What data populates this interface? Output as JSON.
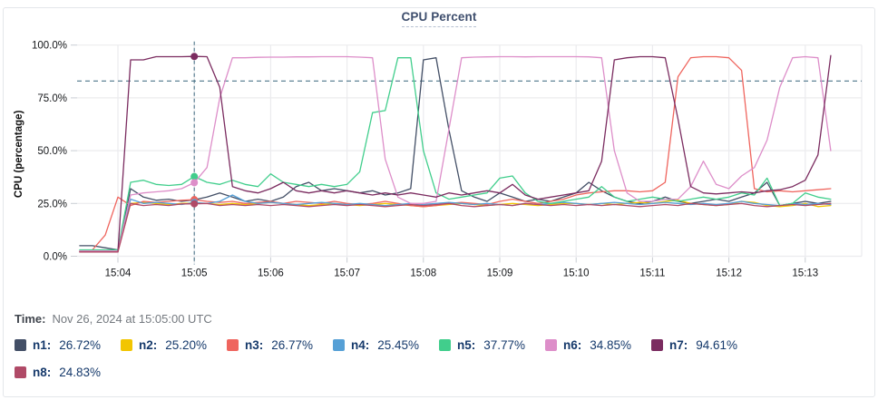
{
  "time_row": {
    "label": "Time:",
    "value": "Nov 26, 2024 at 15:05:00 UTC"
  },
  "chart_data": {
    "type": "line",
    "title": "CPU Percent",
    "ylabel": "CPU (percentage)",
    "ylim": [
      0,
      100
    ],
    "y_ticks": [
      "0.0%",
      "25.0%",
      "50.0%",
      "75.0%",
      "100.0%"
    ],
    "x_ticks": [
      "15:04",
      "15:05",
      "15:06",
      "15:07",
      "15:08",
      "15:09",
      "15:10",
      "15:11",
      "15:12",
      "15:13"
    ],
    "grid": true,
    "legend_position": "bottom",
    "threshold_percent": 83,
    "cursor_time": "15:05:00",
    "cursor_color": "#4d7589",
    "threshold_color": "#4d7589",
    "x": [
      "15:03:30",
      "15:03:40",
      "15:03:50",
      "15:04:00",
      "15:04:10",
      "15:04:20",
      "15:04:30",
      "15:04:40",
      "15:04:50",
      "15:05:00",
      "15:05:10",
      "15:05:20",
      "15:05:30",
      "15:05:40",
      "15:05:50",
      "15:06:00",
      "15:06:10",
      "15:06:20",
      "15:06:30",
      "15:06:40",
      "15:06:50",
      "15:07:00",
      "15:07:10",
      "15:07:20",
      "15:07:30",
      "15:07:40",
      "15:07:50",
      "15:08:00",
      "15:08:10",
      "15:08:20",
      "15:08:30",
      "15:08:40",
      "15:08:50",
      "15:09:00",
      "15:09:10",
      "15:09:20",
      "15:09:30",
      "15:09:40",
      "15:09:50",
      "15:10:00",
      "15:10:10",
      "15:10:20",
      "15:10:30",
      "15:10:40",
      "15:10:50",
      "15:11:00",
      "15:11:10",
      "15:11:20",
      "15:11:30",
      "15:11:40",
      "15:11:50",
      "15:12:00",
      "15:12:10",
      "15:12:20",
      "15:12:30",
      "15:12:40",
      "15:12:50",
      "15:13:00",
      "15:13:10",
      "15:13:20"
    ],
    "series": [
      {
        "name": "n1",
        "color": "#434f66",
        "cursor_value": 26.72,
        "cursor_label": "26.72%",
        "values": [
          5,
          5,
          4,
          3,
          32,
          28,
          26.5,
          27,
          26,
          26.72,
          28,
          30,
          28,
          26,
          27,
          26,
          28,
          33,
          35,
          31,
          32,
          31,
          30,
          31,
          29,
          30,
          32,
          93,
          94,
          60,
          31,
          28,
          26,
          30,
          28,
          26,
          27,
          26,
          28,
          30,
          35,
          31,
          28,
          26,
          25,
          26,
          28,
          26,
          25,
          26,
          27,
          26,
          28,
          30,
          35,
          24,
          25,
          26,
          25,
          26
        ]
      },
      {
        "name": "n2",
        "color": "#f2c501",
        "cursor_value": 25.2,
        "cursor_label": "25.20%",
        "values": [
          2,
          2,
          2,
          2.5,
          25,
          25.5,
          25,
          24.5,
          25,
          25.2,
          25,
          24.5,
          25,
          24.5,
          25,
          25.5,
          25,
          24.5,
          24,
          24.5,
          25,
          24.5,
          24,
          24.5,
          25,
          24.5,
          24,
          23.5,
          24,
          24.5,
          25,
          24.5,
          24,
          24.5,
          25,
          24.5,
          24,
          24.5,
          25,
          25,
          24.5,
          25,
          24.5,
          25,
          25.5,
          25,
          26,
          26.5,
          25,
          24.5,
          24,
          24.5,
          26,
          25.5,
          24,
          23.5,
          24,
          25,
          23.5,
          24
        ]
      },
      {
        "name": "n3",
        "color": "#ef655e",
        "cursor_value": 26.77,
        "cursor_label": "26.77%",
        "values": [
          2.5,
          3,
          10,
          28,
          24,
          26,
          25.5,
          26,
          26.5,
          26.77,
          26,
          25.5,
          26,
          25,
          25.5,
          26,
          25,
          26,
          25.5,
          25,
          26,
          25,
          24.5,
          25,
          26,
          25,
          24,
          23.5,
          24,
          25,
          25.5,
          25,
          24.5,
          26,
          27,
          26,
          25,
          26,
          27,
          29,
          30,
          30.5,
          31,
          31,
          30.5,
          31,
          35,
          85,
          94,
          94.5,
          94.5,
          94,
          88,
          32,
          30.5,
          31,
          30.5,
          31,
          31.5,
          32
        ]
      },
      {
        "name": "n4",
        "color": "#56a0d6",
        "cursor_value": 25.45,
        "cursor_label": "25.45%",
        "values": [
          2,
          2,
          2,
          3,
          27,
          25,
          25.5,
          25,
          24.5,
          25.45,
          25,
          26,
          29,
          26,
          25,
          25.5,
          25,
          24.5,
          25,
          25.5,
          25,
          24.5,
          25,
          24.5,
          24,
          24.5,
          25,
          24.5,
          25,
          25.5,
          25,
          24.5,
          25,
          24.5,
          24,
          25,
          24.5,
          25,
          25.5,
          25,
          24.5,
          25,
          25.5,
          25,
          24.5,
          25,
          25.5,
          25,
          24.5,
          25,
          24.5,
          25,
          26,
          25,
          24.5,
          24,
          25,
          24.5,
          25,
          24.5
        ]
      },
      {
        "name": "n5",
        "color": "#41ce8c",
        "cursor_value": 37.77,
        "cursor_label": "37.77%",
        "values": [
          3,
          3,
          3,
          3,
          35,
          36,
          34,
          33.5,
          34,
          37.77,
          35,
          34,
          36,
          34,
          33,
          39,
          35,
          34,
          33,
          34,
          33,
          34,
          40,
          68,
          69,
          94,
          94,
          50,
          30,
          27,
          28,
          29,
          30,
          37,
          38,
          30,
          26,
          25,
          26,
          27,
          28,
          33,
          28,
          26,
          27,
          28,
          27,
          26,
          27,
          28,
          27,
          28,
          30,
          29,
          37,
          24,
          25,
          30,
          28,
          27
        ]
      },
      {
        "name": "n6",
        "color": "#dd8ec9",
        "cursor_value": 34.85,
        "cursor_label": "34.85%",
        "values": [
          2.5,
          2.5,
          2.5,
          2.5,
          29,
          30,
          30.5,
          31,
          32,
          34.85,
          42,
          75,
          94,
          94,
          94.2,
          94.3,
          94.3,
          94.4,
          94.4,
          94.5,
          94.5,
          94.5,
          94.3,
          94,
          46,
          28,
          25,
          25,
          26,
          60,
          94,
          94.3,
          94.4,
          94.5,
          94.5,
          94.4,
          94.5,
          94.5,
          94.5,
          94.5,
          94.4,
          94,
          50,
          30,
          26,
          26,
          27,
          27,
          33,
          45,
          34,
          32,
          38,
          42,
          55,
          80,
          94,
          94.5,
          94,
          50
        ]
      },
      {
        "name": "n7",
        "color": "#7b2c60",
        "cursor_value": 94.61,
        "cursor_label": "94.61%",
        "values": [
          2,
          2,
          2,
          2,
          93,
          93,
          94.5,
          94.5,
          94.5,
          94.61,
          94.5,
          80,
          33,
          31,
          30,
          32,
          35,
          31,
          30,
          31,
          30,
          31,
          30,
          29,
          30,
          29,
          30,
          29,
          28,
          30,
          29,
          30,
          31,
          30,
          34,
          29,
          27,
          28,
          29,
          30,
          31,
          45,
          93,
          94,
          94.5,
          94.5,
          94,
          65,
          33,
          30,
          29.5,
          30,
          30.5,
          30,
          31,
          31.5,
          33,
          36,
          48,
          95
        ]
      },
      {
        "name": "n8",
        "color": "#b04a67",
        "cursor_value": 24.83,
        "cursor_label": "24.83%",
        "values": [
          2,
          2,
          2,
          2,
          25,
          24,
          24.5,
          24,
          24.8,
          24.83,
          25,
          24,
          24.5,
          24,
          24.5,
          24,
          24.5,
          24,
          23.5,
          24,
          24.5,
          24,
          24.5,
          24,
          23.5,
          24,
          24.5,
          24,
          24.5,
          25,
          24,
          23.5,
          24,
          24.5,
          24,
          25,
          24.5,
          24,
          24.5,
          24,
          24.5,
          24,
          24.5,
          24,
          23.5,
          24,
          24.5,
          24,
          25,
          24.5,
          24,
          24.5,
          25,
          24,
          23.5,
          24,
          24.5,
          24,
          24.5,
          25
        ]
      }
    ]
  }
}
